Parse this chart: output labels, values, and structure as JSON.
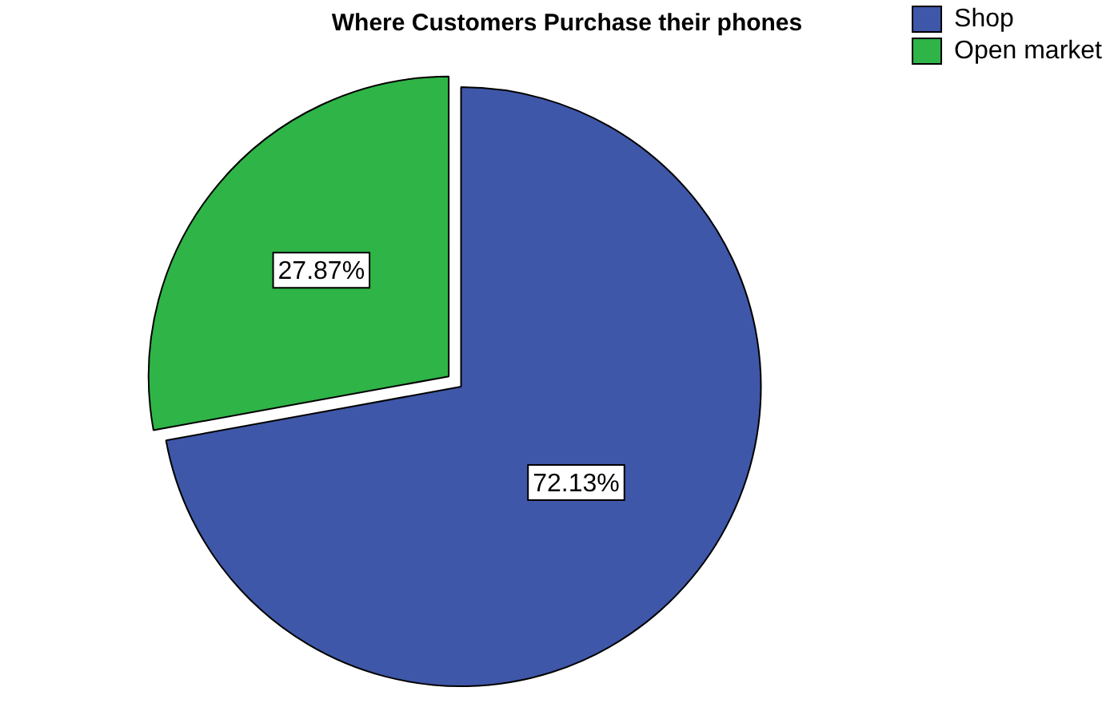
{
  "chart_data": {
    "type": "pie",
    "title": "Where Customers Purchase their phones",
    "categories": [
      "Shop",
      "Open market"
    ],
    "values": [
      72.13,
      27.87
    ],
    "colors": [
      "#3f57a8",
      "#2fb447"
    ],
    "value_labels": [
      "72.13%",
      "27.87%"
    ],
    "legend": "top right"
  }
}
